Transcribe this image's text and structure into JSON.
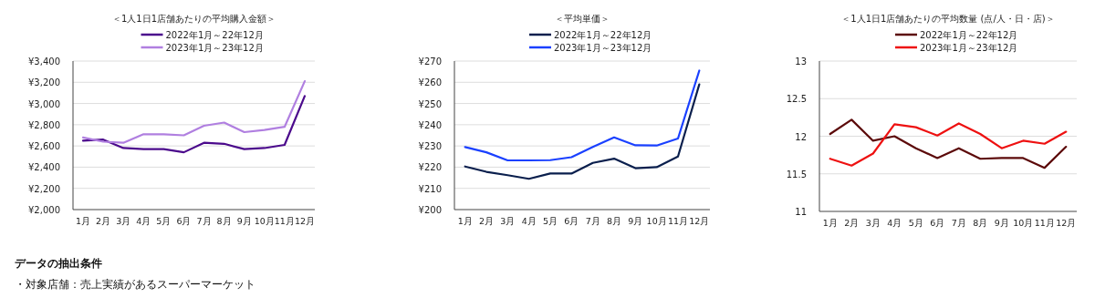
{
  "chart_data": [
    {
      "type": "line",
      "title": "＜1人1日1店舗あたりの平均購入金額＞",
      "categories": [
        "1月",
        "2月",
        "3月",
        "4月",
        "5月",
        "6月",
        "7月",
        "8月",
        "9月",
        "10月",
        "11月",
        "12月"
      ],
      "series": [
        {
          "name": "2022年1月～22年12月",
          "color": "#4b0a8c",
          "values": [
            2650,
            2660,
            2580,
            2570,
            2570,
            2540,
            2630,
            2620,
            2570,
            2580,
            2610,
            3070
          ]
        },
        {
          "name": "2023年1月～23年12月",
          "color": "#b07fe0",
          "values": [
            2680,
            2640,
            2630,
            2710,
            2710,
            2700,
            2790,
            2820,
            2730,
            2750,
            2780,
            3210
          ]
        }
      ],
      "ylim": [
        2000,
        3400
      ],
      "yticks": [
        {
          "value": 2000,
          "label": "¥2,000"
        },
        {
          "value": 2200,
          "label": "¥2,200"
        },
        {
          "value": 2400,
          "label": "¥2,400"
        },
        {
          "value": 2600,
          "label": "¥2,600"
        },
        {
          "value": 2800,
          "label": "¥2,800"
        },
        {
          "value": 3000,
          "label": "¥3,000"
        },
        {
          "value": 3200,
          "label": "¥3,200"
        },
        {
          "value": 3400,
          "label": "¥3,400"
        }
      ],
      "grid": "y",
      "legend": "top",
      "annotations": [
        "データの抽出条件",
        "・対象店舗：売上実績があるスーパーマーケット"
      ]
    },
    {
      "type": "line",
      "title": "＜平均単価＞",
      "categories": [
        "1月",
        "2月",
        "3月",
        "4月",
        "5月",
        "6月",
        "7月",
        "8月",
        "9月",
        "10月",
        "11月",
        "12月"
      ],
      "series": [
        {
          "name": "2022年1月～22年12月",
          "color": "#0a1f4d",
          "values": [
            220.3,
            217.8,
            216.2,
            214.5,
            217,
            217,
            222,
            224,
            219.5,
            220,
            225,
            259
          ]
        },
        {
          "name": "2023年1月～23年12月",
          "color": "#1a40ff",
          "values": [
            229.5,
            227,
            223.2,
            223.2,
            223.3,
            224.7,
            229.5,
            234,
            230.3,
            230.2,
            233.5,
            265.5
          ]
        }
      ],
      "ylim": [
        200,
        270
      ],
      "yticks": [
        {
          "value": 200,
          "label": "¥200"
        },
        {
          "value": 210,
          "label": "¥210"
        },
        {
          "value": 220,
          "label": "¥220"
        },
        {
          "value": 230,
          "label": "¥230"
        },
        {
          "value": 240,
          "label": "¥240"
        },
        {
          "value": 250,
          "label": "¥250"
        },
        {
          "value": 260,
          "label": "¥260"
        },
        {
          "value": 270,
          "label": "¥270"
        }
      ],
      "grid": "y",
      "legend": "top"
    },
    {
      "type": "line",
      "title": "＜1人1日1店舗あたりの平均数量 (点/人・日・店)＞",
      "categories": [
        "1月",
        "2月",
        "3月",
        "4月",
        "5月",
        "6月",
        "7月",
        "8月",
        "9月",
        "10月",
        "11月",
        "12月"
      ],
      "series": [
        {
          "name": "2022年1月～22年12月",
          "color": "#5c0a0a",
          "values": [
            12.03,
            12.22,
            11.94,
            12.0,
            11.84,
            11.71,
            11.84,
            11.7,
            11.71,
            11.71,
            11.58,
            11.86
          ]
        },
        {
          "name": "2023年1月～23年12月",
          "color": "#ee1111",
          "values": [
            11.7,
            11.61,
            11.77,
            12.16,
            12.12,
            12.01,
            12.17,
            12.03,
            11.84,
            11.94,
            11.9,
            12.06
          ]
        }
      ],
      "ylim": [
        11,
        13
      ],
      "yticks": [
        11,
        11.5,
        12,
        12.5,
        13
      ],
      "grid": "y",
      "legend": "top"
    }
  ]
}
